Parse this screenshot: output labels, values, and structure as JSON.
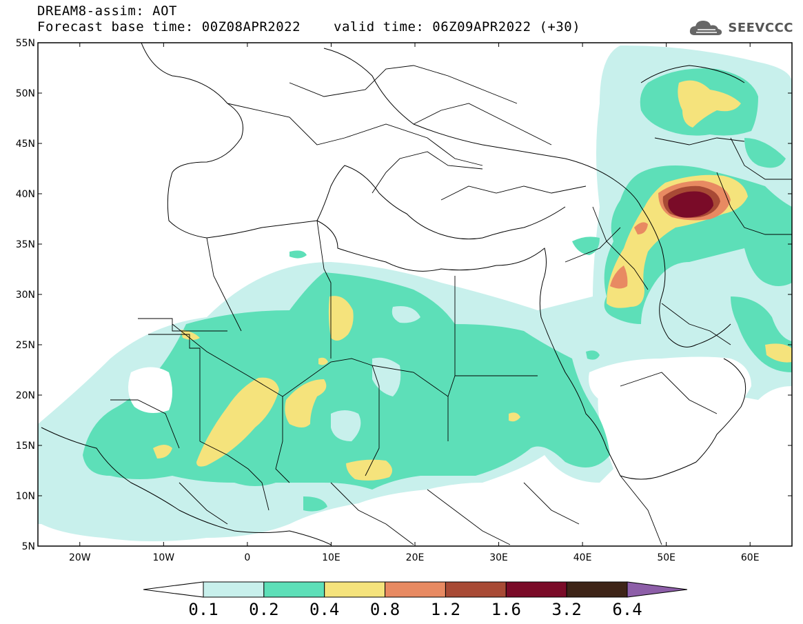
{
  "header": {
    "title_line1": "DREAM8-assim: AOT",
    "title_line2": "Forecast base time: 00Z08APR2022",
    "valid_time": "valid time: 06Z09APR2022 (+30)",
    "logo_text": "SEEVCCC"
  },
  "map": {
    "lat_labels": [
      "55N",
      "50N",
      "45N",
      "40N",
      "35N",
      "30N",
      "25N",
      "20N",
      "15N",
      "10N",
      "5N"
    ],
    "lon_labels": [
      "20W",
      "10W",
      "0",
      "10E",
      "20E",
      "30E",
      "40E",
      "50E",
      "60E"
    ],
    "extent": {
      "lon_min": -25,
      "lon_max": 65,
      "lat_min": 5,
      "lat_max": 55
    }
  },
  "colorbar": {
    "levels": [
      "0.1",
      "0.2",
      "0.4",
      "0.8",
      "1.2",
      "1.6",
      "3.2",
      "6.4"
    ],
    "colors": [
      "#c8f0ec",
      "#5ddfb8",
      "#f5e37c",
      "#e88a62",
      "#a84a35",
      "#7a0b28",
      "#3e2417",
      "#8d5ea8"
    ]
  }
}
